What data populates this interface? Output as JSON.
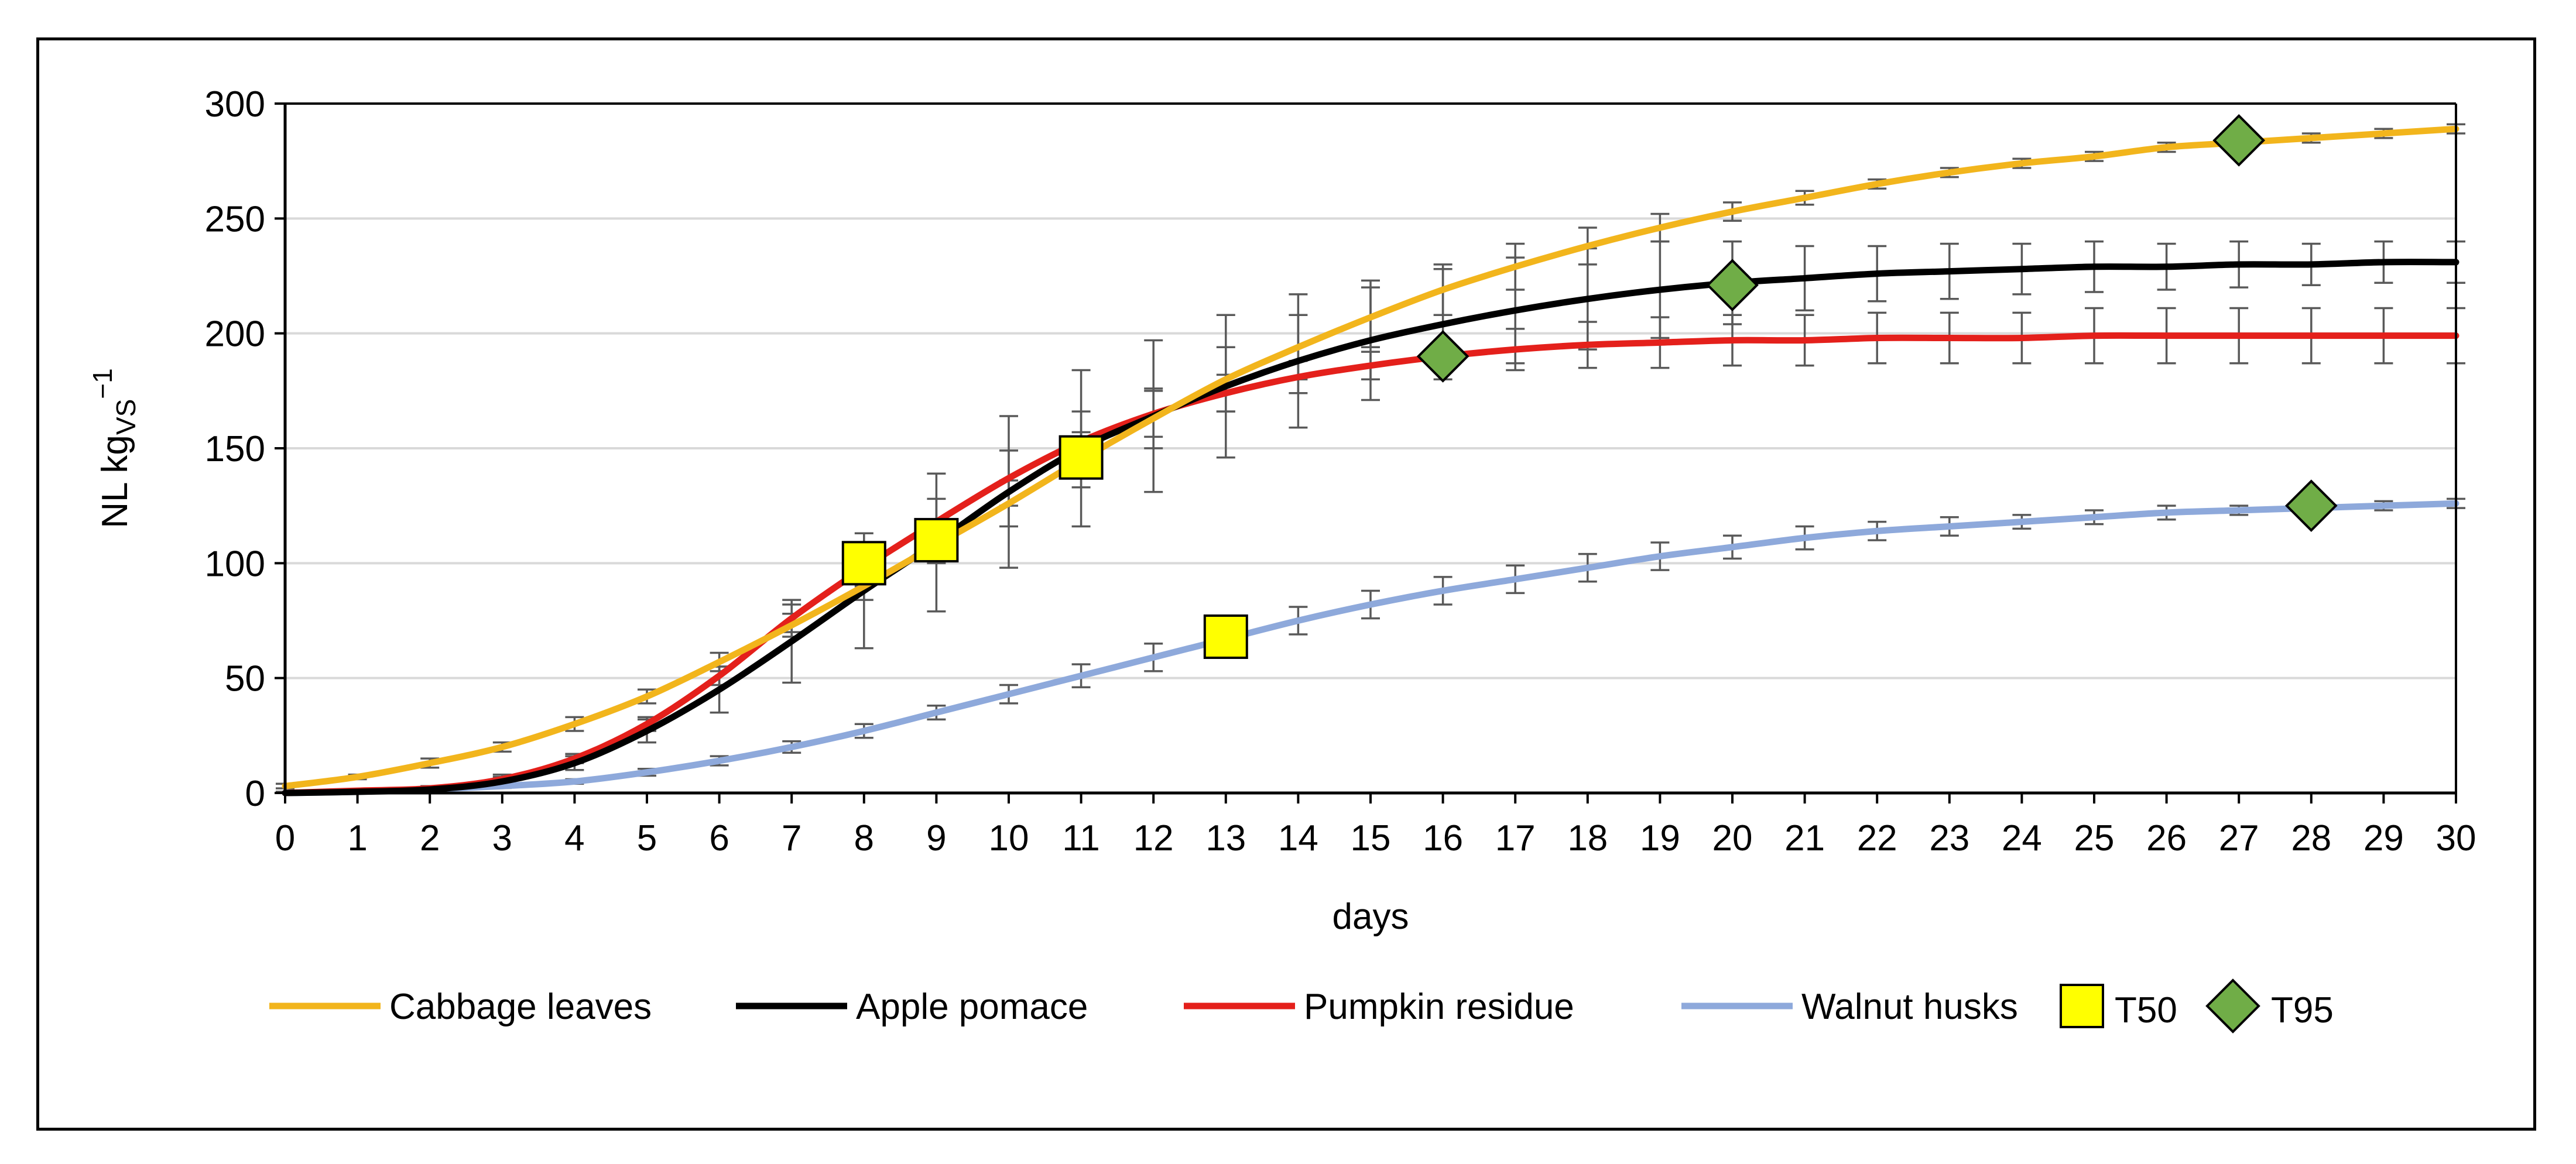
{
  "chart_data": {
    "type": "line",
    "xlabel": "days",
    "ylabel": {
      "main": "NL kg",
      "sub": "VS",
      "sup": "−1"
    },
    "xlim": [
      0,
      30
    ],
    "ylim": [
      0,
      300
    ],
    "x_ticks": [
      0,
      1,
      2,
      3,
      4,
      5,
      6,
      7,
      8,
      9,
      10,
      11,
      12,
      13,
      14,
      15,
      16,
      17,
      18,
      19,
      20,
      21,
      22,
      23,
      24,
      25,
      26,
      27,
      28,
      29,
      30
    ],
    "y_ticks": [
      0,
      50,
      100,
      150,
      200,
      250,
      300
    ],
    "grid": "horizontal",
    "legend_position": "bottom",
    "series": [
      {
        "name": "Cabbage leaves",
        "color": "#F2B51C",
        "x": [
          0,
          1,
          2,
          3,
          4,
          5,
          6,
          7,
          8,
          9,
          10,
          11,
          12,
          13,
          14,
          15,
          16,
          17,
          18,
          19,
          20,
          21,
          22,
          23,
          24,
          25,
          26,
          27,
          28,
          29,
          30
        ],
        "y": [
          3,
          7,
          13,
          20,
          30,
          42,
          57,
          73,
          90,
          108,
          126,
          145,
          163,
          180,
          194,
          207,
          219,
          229,
          238,
          246,
          253,
          259,
          265,
          270,
          274,
          277,
          281,
          283,
          285,
          287,
          289
        ],
        "error": [
          1,
          1,
          2,
          2,
          3,
          3,
          4,
          5,
          6,
          8,
          10,
          12,
          13,
          14,
          14,
          13,
          11,
          10,
          8,
          6,
          4,
          3,
          2,
          2,
          2,
          2,
          2,
          2,
          2,
          2,
          2
        ]
      },
      {
        "name": "Apple pomace",
        "color": "#000000",
        "x": [
          0,
          1,
          2,
          3,
          4,
          5,
          6,
          7,
          8,
          9,
          10,
          11,
          12,
          13,
          14,
          15,
          16,
          17,
          18,
          19,
          20,
          21,
          22,
          23,
          24,
          25,
          26,
          27,
          28,
          29,
          30
        ],
        "y": [
          0,
          0.5,
          1.5,
          5,
          13,
          27,
          45,
          66,
          88,
          109,
          131,
          150,
          164,
          177,
          188,
          197,
          204,
          210,
          215,
          219,
          222,
          224,
          226,
          227,
          228,
          229,
          229,
          230,
          230,
          231,
          231
        ],
        "error": [
          0.5,
          0.5,
          1,
          2,
          3,
          5,
          10,
          18,
          25,
          30,
          33,
          34,
          33,
          31,
          29,
          26,
          24,
          23,
          22,
          21,
          18,
          14,
          12,
          12,
          11,
          11,
          10,
          10,
          9,
          9,
          9
        ]
      },
      {
        "name": "Pumpkin residue",
        "color": "#E4201B",
        "x": [
          0,
          1,
          2,
          3,
          4,
          5,
          6,
          7,
          8,
          9,
          10,
          11,
          12,
          13,
          14,
          15,
          16,
          17,
          18,
          19,
          20,
          21,
          22,
          23,
          24,
          25,
          26,
          27,
          28,
          29,
          30
        ],
        "y": [
          0,
          1,
          2,
          6,
          15,
          30,
          51,
          76,
          98,
          118,
          137,
          153,
          165,
          174,
          181,
          186,
          190,
          193,
          195,
          196,
          197,
          197,
          198,
          198,
          198,
          199,
          199,
          199,
          199,
          199,
          199
        ],
        "error": [
          0.5,
          0.5,
          1,
          2,
          2,
          3,
          4,
          6,
          8,
          10,
          12,
          13,
          10,
          8,
          7,
          6,
          7,
          9,
          10,
          11,
          11,
          11,
          11,
          11,
          11,
          12,
          12,
          12,
          12,
          12,
          12
        ]
      },
      {
        "name": "Walnut husks",
        "color": "#8EA9DB",
        "x": [
          0,
          1,
          2,
          3,
          4,
          5,
          6,
          7,
          8,
          9,
          10,
          11,
          12,
          13,
          14,
          15,
          16,
          17,
          18,
          19,
          20,
          21,
          22,
          23,
          24,
          25,
          26,
          27,
          28,
          29,
          30
        ],
        "y": [
          0,
          0.5,
          1.5,
          3,
          5,
          9,
          14,
          20,
          27,
          35,
          43,
          51,
          59,
          67,
          75,
          82,
          88,
          93,
          98,
          103,
          107,
          111,
          114,
          116,
          118,
          120,
          122,
          123,
          124,
          125,
          126
        ],
        "error": [
          0.3,
          0.3,
          0.5,
          0.8,
          1,
          1.5,
          2,
          2.5,
          3,
          3,
          4,
          5,
          6,
          6,
          6,
          6,
          6,
          6,
          6,
          6,
          5,
          5,
          4,
          4,
          3,
          3,
          3,
          2,
          2,
          2,
          2
        ]
      }
    ],
    "markers": [
      {
        "name": "T50",
        "shape": "square",
        "color": "#FFFF00",
        "points": [
          {
            "x": 8,
            "y": 100
          },
          {
            "x": 9,
            "y": 110
          },
          {
            "x": 11,
            "y": 146
          },
          {
            "x": 13,
            "y": 68
          }
        ]
      },
      {
        "name": "T95",
        "shape": "diamond",
        "color": "#70AD47",
        "points": [
          {
            "x": 16,
            "y": 190
          },
          {
            "x": 20,
            "y": 221
          },
          {
            "x": 27,
            "y": 284
          },
          {
            "x": 28,
            "y": 125
          }
        ]
      }
    ]
  }
}
